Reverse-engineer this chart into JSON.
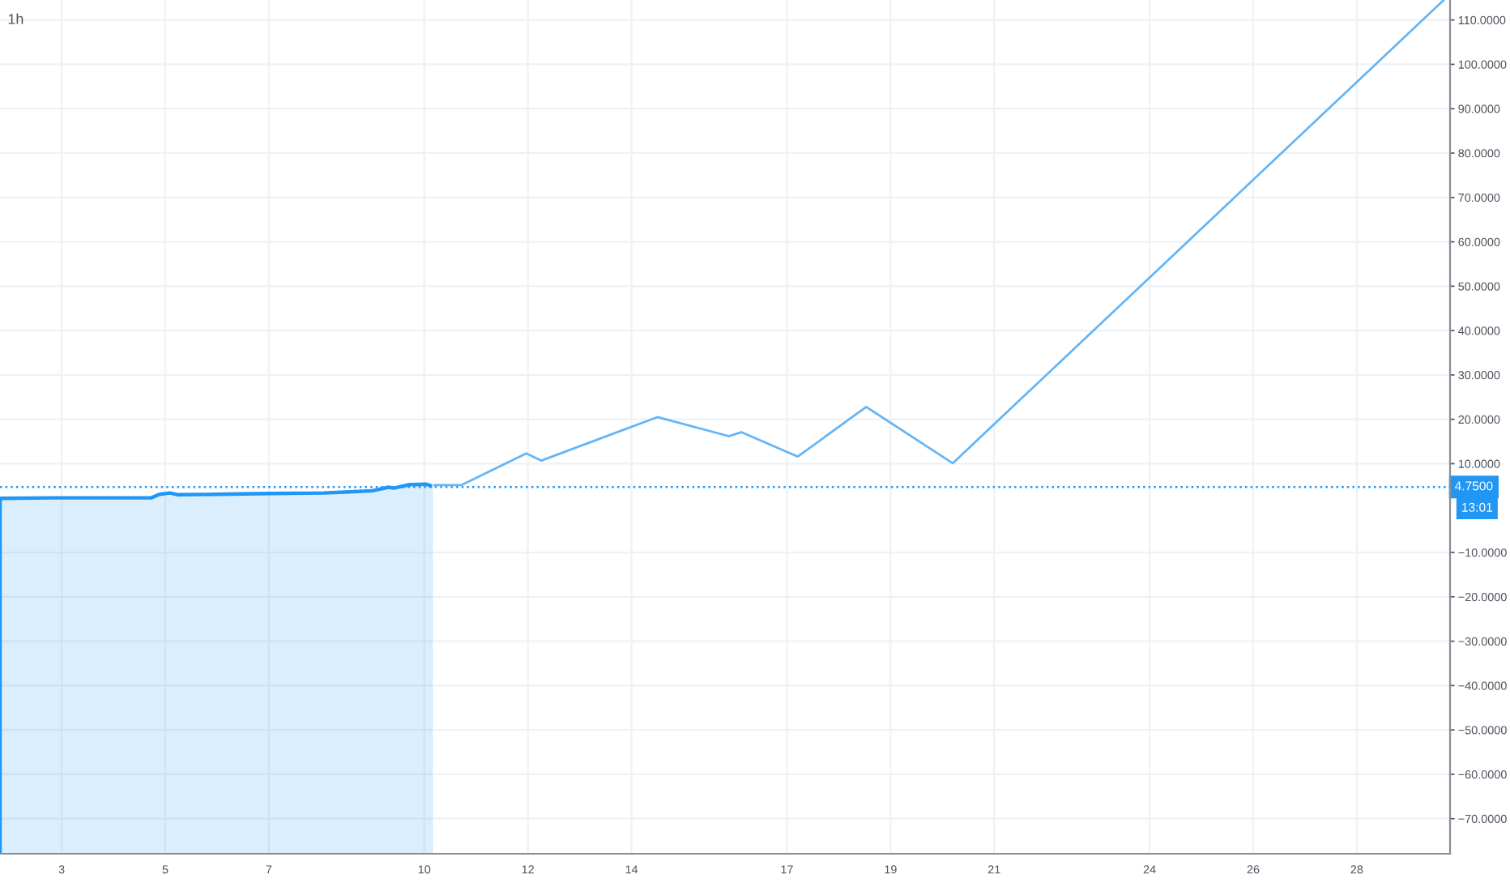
{
  "chart_data": {
    "type": "area",
    "title": "1h",
    "series": [
      {
        "color": "#2196f3",
        "x": [
          1.81,
          2.85,
          4.73,
          4.89,
          5.09,
          5.25,
          5.97,
          7.03,
          8.06,
          8.47,
          9.0,
          9.31,
          9.41,
          9.72,
          10.03,
          10.16,
          10.19
        ],
        "values": [
          2.2,
          2.3,
          2.3,
          3.1,
          3.4,
          3.0,
          3.1,
          3.3,
          3.4,
          3.6,
          3.9,
          4.7,
          4.5,
          5.3,
          5.4,
          4.9,
          4.8
        ]
      },
      {
        "type": "line",
        "color": "#64b5f6",
        "x": [
          10.19,
          10.72,
          11.97,
          12.26,
          14.5,
          15.88,
          16.12,
          17.21,
          18.53,
          20.2,
          29.68
        ],
        "values": [
          5.2,
          5.2,
          12.3,
          10.7,
          20.5,
          16.2,
          17.1,
          11.6,
          22.8,
          10.1,
          114.5
        ]
      }
    ],
    "xlim": [
      1.81,
      29.8
    ],
    "ylim": [
      -77.9,
      114.5
    ],
    "xticks": [
      3,
      5,
      7,
      10,
      12,
      14,
      17,
      19,
      21,
      24,
      26,
      28
    ],
    "yticks": [
      {
        "value": -70,
        "label": "−70.0000"
      },
      {
        "value": -60,
        "label": "−60.0000"
      },
      {
        "value": -50,
        "label": "−50.0000"
      },
      {
        "value": -40,
        "label": "−40.0000"
      },
      {
        "value": -30,
        "label": "−30.0000"
      },
      {
        "value": -20,
        "label": "−20.0000"
      },
      {
        "value": -10,
        "label": "−10.0000"
      },
      {
        "value": 10,
        "label": "10.0000"
      },
      {
        "value": 20,
        "label": "20.0000"
      },
      {
        "value": 30,
        "label": "30.0000"
      },
      {
        "value": 40,
        "label": "40.0000"
      },
      {
        "value": 50,
        "label": "50.0000"
      },
      {
        "value": 60,
        "label": "60.0000"
      },
      {
        "value": 70,
        "label": "70.0000"
      },
      {
        "value": 80,
        "label": "80.0000"
      },
      {
        "value": 90,
        "label": "90.0000"
      },
      {
        "value": 100,
        "label": "100.0000"
      },
      {
        "value": 110,
        "label": "110.0000"
      }
    ],
    "grid": true,
    "ref_lines": [
      {
        "axis": "y",
        "value": 4.75,
        "label": "4.7500",
        "color": "#2196f3",
        "line_style": "dotted"
      }
    ],
    "annotations": [
      "13:01"
    ]
  }
}
